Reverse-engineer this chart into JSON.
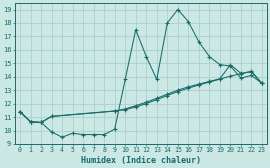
{
  "xlabel": "Humidex (Indice chaleur)",
  "bg_color": "#cce8e5",
  "grid_color": "#aacfcc",
  "line_color": "#1a6b68",
  "xlim": [
    -0.5,
    23.5
  ],
  "ylim": [
    9.0,
    19.5
  ],
  "xticks": [
    0,
    1,
    2,
    3,
    4,
    5,
    6,
    7,
    8,
    9,
    10,
    11,
    12,
    13,
    14,
    15,
    16,
    17,
    18,
    19,
    20,
    21,
    22,
    23
  ],
  "yticks": [
    9,
    10,
    11,
    12,
    13,
    14,
    15,
    16,
    17,
    18,
    19
  ],
  "line1_x": [
    0,
    1,
    2,
    3,
    4,
    5,
    6,
    7,
    8,
    9,
    10,
    11,
    12,
    13,
    14,
    15,
    16,
    17,
    18,
    19,
    20,
    21,
    22,
    23
  ],
  "line1_y": [
    11.4,
    10.65,
    10.6,
    9.9,
    9.5,
    9.8,
    9.7,
    9.7,
    9.7,
    10.1,
    13.8,
    17.5,
    15.5,
    13.8,
    18.0,
    19.0,
    18.1,
    16.6,
    15.5,
    14.9,
    14.8,
    13.9,
    14.1,
    13.5
  ],
  "line2_x": [
    0,
    1,
    2,
    3,
    9,
    10,
    11,
    12,
    13,
    14,
    15,
    16,
    17,
    18,
    19,
    20,
    21,
    22,
    23
  ],
  "line2_y": [
    11.4,
    10.65,
    10.6,
    11.05,
    11.45,
    11.6,
    11.85,
    12.1,
    12.4,
    12.7,
    13.0,
    13.25,
    13.45,
    13.65,
    13.85,
    14.9,
    14.25,
    14.4,
    13.5
  ],
  "line3_x": [
    0,
    1,
    2,
    3,
    9,
    10,
    11,
    12,
    13,
    14,
    15,
    16,
    17,
    18,
    19,
    20,
    21,
    22,
    23
  ],
  "line3_y": [
    11.4,
    10.65,
    10.6,
    11.05,
    11.45,
    11.55,
    11.75,
    12.0,
    12.3,
    12.6,
    12.9,
    13.15,
    13.38,
    13.6,
    13.82,
    14.05,
    14.22,
    14.38,
    13.5
  ]
}
